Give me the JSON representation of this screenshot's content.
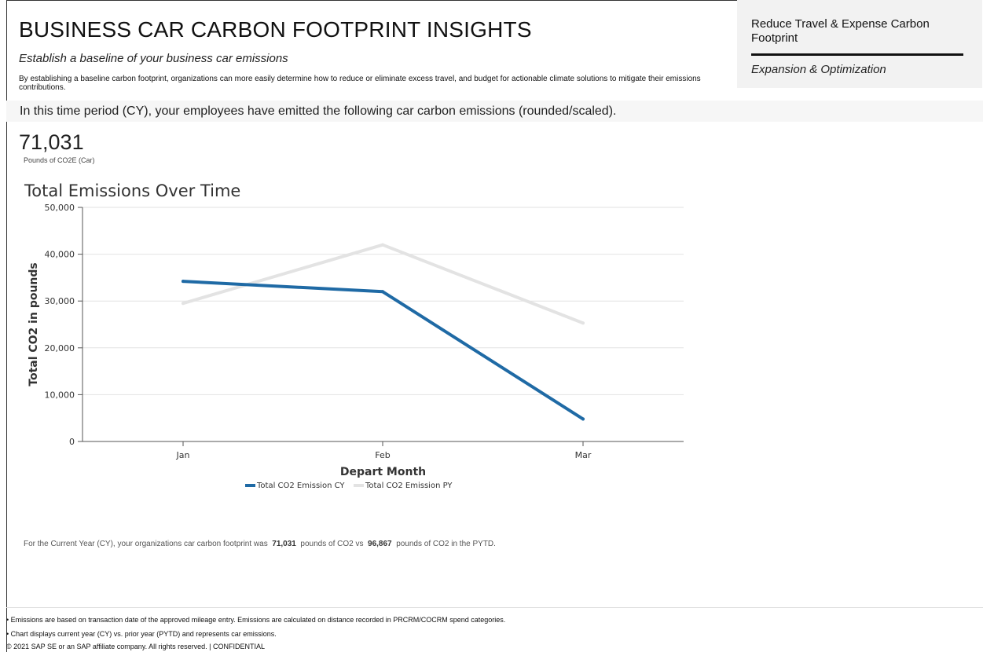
{
  "header": {
    "title": "BUSINESS CAR CARBON FOOTPRINT INSIGHTS",
    "subtitle": "Establish a baseline of your business car emissions",
    "description": "By establishing a baseline carbon footprint, organizations can more easily determine how to reduce or eliminate excess travel, and budget for actionable climate solutions to mitigate their emissions contributions."
  },
  "right_panel": {
    "item1": "Reduce Travel & Expense Carbon Footprint",
    "item2": "Expansion & Optimization"
  },
  "period_text": "In this time period (CY), your employees have emitted the following car carbon emissions (rounded/scaled).",
  "kpi": {
    "value": "71,031",
    "label": "Pounds of CO2E (Car)"
  },
  "summary": {
    "prefix": "For the Current Year (CY), your organizations car carbon footprint was",
    "cy_value": "71,031",
    "middle": "pounds of CO2 vs",
    "py_value": "96,867",
    "suffix": "pounds of CO2 in the PYTD."
  },
  "footer": {
    "note1": "• Emissions are based on transaction date of the approved mileage entry. Emissions are calculated on distance recorded in PRCRM/COCRM spend categories.",
    "note2": "• Chart displays current year (CY) vs. prior year (PYTD) and represents car emissions.",
    "copyright": "© 2021 SAP SE or an SAP affiliate company. All rights reserved. | CONFIDENTIAL"
  },
  "chart_data": {
    "type": "line",
    "title": "Total Emissions Over Time",
    "xlabel": "Depart Month",
    "ylabel": "Total CO2 in pounds",
    "categories": [
      "Jan",
      "Feb",
      "Mar"
    ],
    "ylim": [
      0,
      50000
    ],
    "yticks": [
      0,
      10000,
      20000,
      30000,
      40000,
      50000
    ],
    "ytick_labels": [
      "0",
      "10,000",
      "20,000",
      "30,000",
      "40,000",
      "50,000"
    ],
    "grid": true,
    "legend_position": "bottom",
    "series": [
      {
        "name": "Total CO2 Emission CY",
        "values": [
          34200,
          32000,
          4800
        ],
        "color": "#1f6aa5"
      },
      {
        "name": "Total CO2 Emission PY",
        "values": [
          29500,
          42000,
          25300
        ],
        "color": "#e3e3e3"
      }
    ]
  }
}
